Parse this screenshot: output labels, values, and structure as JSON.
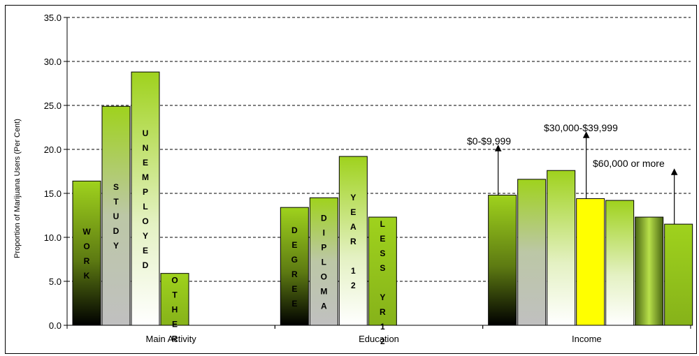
{
  "chart_data": {
    "type": "bar",
    "ylabel": "Proportion of Marijuana Users (Per Cent)",
    "ylim": [
      0,
      35
    ],
    "yticks": [
      "0.0",
      "5.0",
      "10.0",
      "15.0",
      "20.0",
      "25.0",
      "30.0",
      "35.0"
    ],
    "grid": true,
    "groups": [
      {
        "name": "Main Activity",
        "bars": [
          {
            "label": "WORK",
            "letters": [
              "W",
              "O",
              "R",
              "K"
            ],
            "value": 16.4,
            "fill": "grad-dark"
          },
          {
            "label": "STUDY",
            "letters": [
              "S",
              "T",
              "U",
              "D",
              "Y"
            ],
            "value": 24.9,
            "fill": "grad-grey"
          },
          {
            "label": "UNEMPLOYED",
            "letters": [
              "U",
              "N",
              "E",
              "M",
              "P",
              "L",
              "O",
              "Y",
              "E",
              "D"
            ],
            "value": 28.8,
            "fill": "grad-white"
          },
          {
            "label": "OTHER",
            "letters": [
              "O",
              "T",
              "H",
              "E",
              "R"
            ],
            "value": 5.9,
            "fill": "grad-solid"
          }
        ]
      },
      {
        "name": "Education",
        "bars": [
          {
            "label": "DEGREE",
            "letters": [
              "D",
              "E",
              "G",
              "R",
              "E",
              "E"
            ],
            "value": 13.4,
            "fill": "grad-dark"
          },
          {
            "label": "DIPLOMA",
            "letters": [
              "D",
              "I",
              "P",
              "L",
              "O",
              "M",
              "A"
            ],
            "value": 14.5,
            "fill": "grad-grey"
          },
          {
            "label": "YEAR 12",
            "letters": [
              "Y",
              "E",
              "A",
              "R",
              "",
              "1",
              "2"
            ],
            "value": 19.2,
            "fill": "grad-white"
          },
          {
            "label": "LESS YR12",
            "letters": [
              "L",
              "E",
              "S",
              "S",
              "",
              "Y",
              "R",
              "1",
              "2"
            ],
            "value": 12.3,
            "fill": "grad-solid"
          }
        ]
      },
      {
        "name": "Income",
        "bars": [
          {
            "label": "",
            "letters": [],
            "value": 14.8,
            "fill": "grad-dark"
          },
          {
            "label": "",
            "letters": [],
            "value": 16.6,
            "fill": "grad-grey"
          },
          {
            "label": "",
            "letters": [],
            "value": 17.6,
            "fill": "grad-white"
          },
          {
            "label": "",
            "letters": [],
            "value": 14.4,
            "fill": "yellow"
          },
          {
            "label": "",
            "letters": [],
            "value": 14.2,
            "fill": "grad-white"
          },
          {
            "label": "",
            "letters": [],
            "value": 12.3,
            "fill": "grad-radial"
          },
          {
            "label": "",
            "letters": [],
            "value": 11.5,
            "fill": "grad-solid"
          }
        ]
      }
    ],
    "annotations": [
      {
        "text": "$0-$9,999",
        "group": 2,
        "bar": 0
      },
      {
        "text": "$30,000-$39,999",
        "group": 2,
        "bar": 3
      },
      {
        "text": "$60,000 or more",
        "group": 2,
        "bar": 6
      }
    ]
  }
}
